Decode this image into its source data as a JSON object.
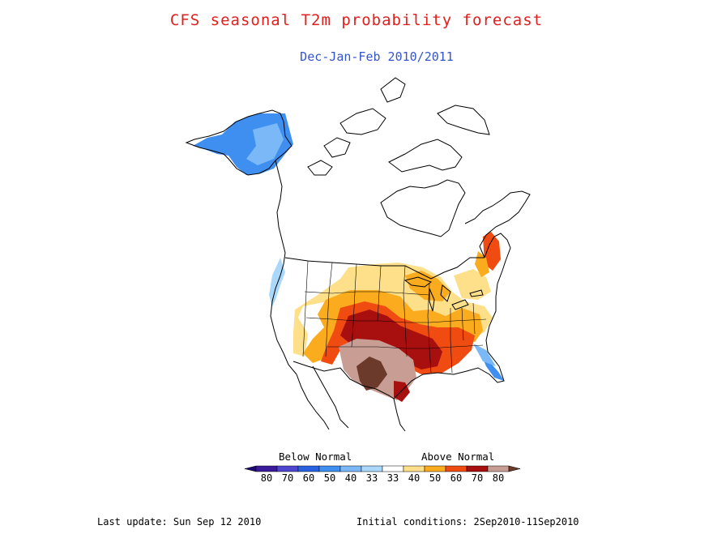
{
  "title": "CFS seasonal T2m probability forecast",
  "subtitle": "Dec-Jan-Feb 2010/2011",
  "legend": {
    "below_label": "Below Normal",
    "above_label": "Above Normal",
    "bins": [
      {
        "label": "80",
        "color": "#3a1a9a"
      },
      {
        "label": "70",
        "color": "#4f46cf"
      },
      {
        "label": "60",
        "color": "#2962e0"
      },
      {
        "label": "50",
        "color": "#3f8ff0"
      },
      {
        "label": "40",
        "color": "#7ab8f7"
      },
      {
        "label": "33",
        "color": "#aad8fa"
      },
      {
        "label": "33",
        "color": "#ffffff"
      },
      {
        "label": "40",
        "color": "#ffe08a"
      },
      {
        "label": "50",
        "color": "#fbab1e"
      },
      {
        "label": "60",
        "color": "#f04c12"
      },
      {
        "label": "70",
        "color": "#a80f0f"
      },
      {
        "label": "80",
        "color": "#c89d94"
      }
    ],
    "end_colors": {
      "low": "#1e0a6e",
      "high": "#6b3a2a"
    }
  },
  "footer": {
    "last_update": "Last update: Sun Sep 12 2010",
    "initial_conditions": "Initial conditions: 2Sep2010-11Sep2010"
  },
  "colors": {
    "blue_light": "#7ab8f7",
    "blue_mid": "#3f8ff0",
    "yellow": "#ffe08a",
    "orange": "#fbab1e",
    "red_orange": "#f04c12",
    "dark_red": "#a80f0f",
    "pink_brown": "#c89d94",
    "brown": "#6b3a2a"
  }
}
